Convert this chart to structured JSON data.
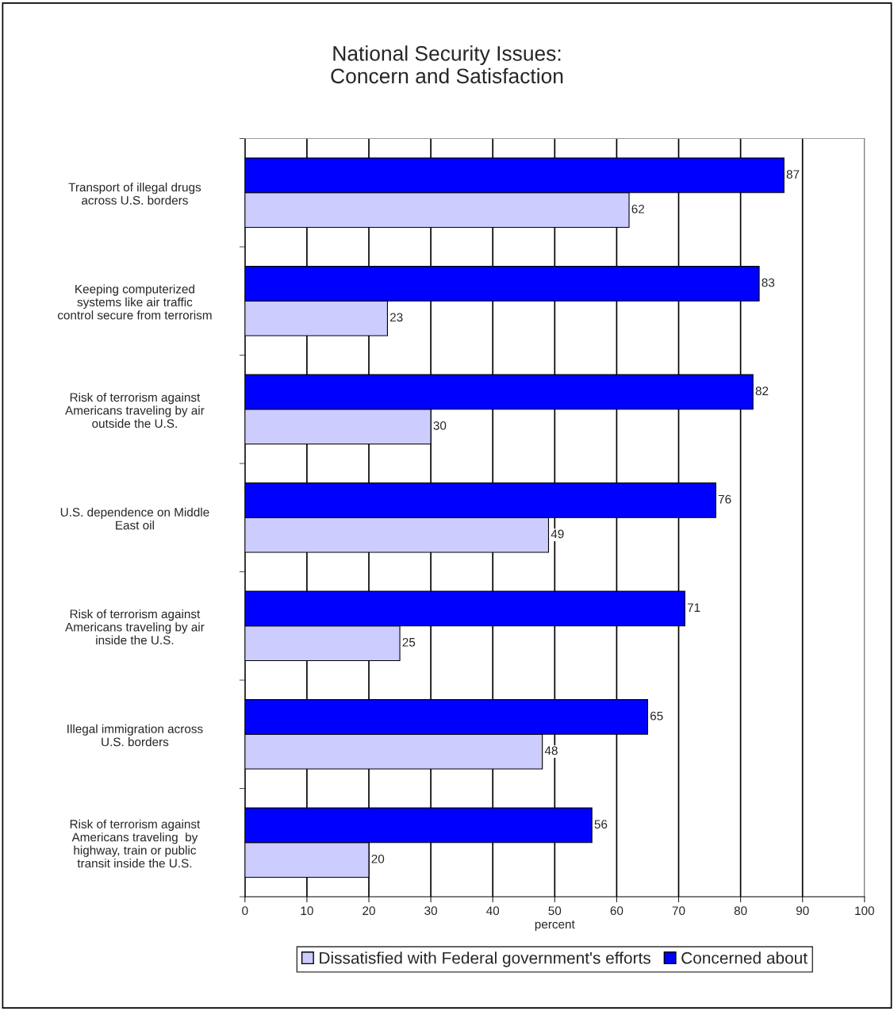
{
  "chart_data": {
    "type": "bar",
    "orientation": "horizontal",
    "title": "National Security Issues:\nConcern and Satisfaction",
    "xlabel": "percent",
    "categories": [
      "Transport of illegal drugs\nacross U.S. borders",
      "Keeping computerized\nsystems like air traffic\ncontrol secure from terrorism",
      "Risk of terrorism against\nAmericans traveling by air\noutside the U.S.",
      "U.S. dependence on Middle\nEast oil",
      "Risk of terrorism against\nAmericans traveling by air\ninside the U.S.",
      "Illegal immigration across\nU.S. borders",
      "Risk of terrorism against\nAmericans traveling  by\nhighway, train or public\ntransit inside the U.S."
    ],
    "series": [
      {
        "name": "Dissatisfied with Federal government's efforts",
        "color": "#ccccff",
        "values": [
          62,
          23,
          30,
          49,
          25,
          48,
          20
        ]
      },
      {
        "name": "Concerned about",
        "color": "#0000ff",
        "values": [
          87,
          83,
          82,
          76,
          71,
          65,
          56
        ]
      }
    ],
    "xlim": [
      0,
      100
    ],
    "xticks": [
      0,
      10,
      20,
      30,
      40,
      50,
      60,
      70,
      80,
      90,
      100
    ],
    "grid": "x",
    "legend": "bottom",
    "data_labels": true
  }
}
